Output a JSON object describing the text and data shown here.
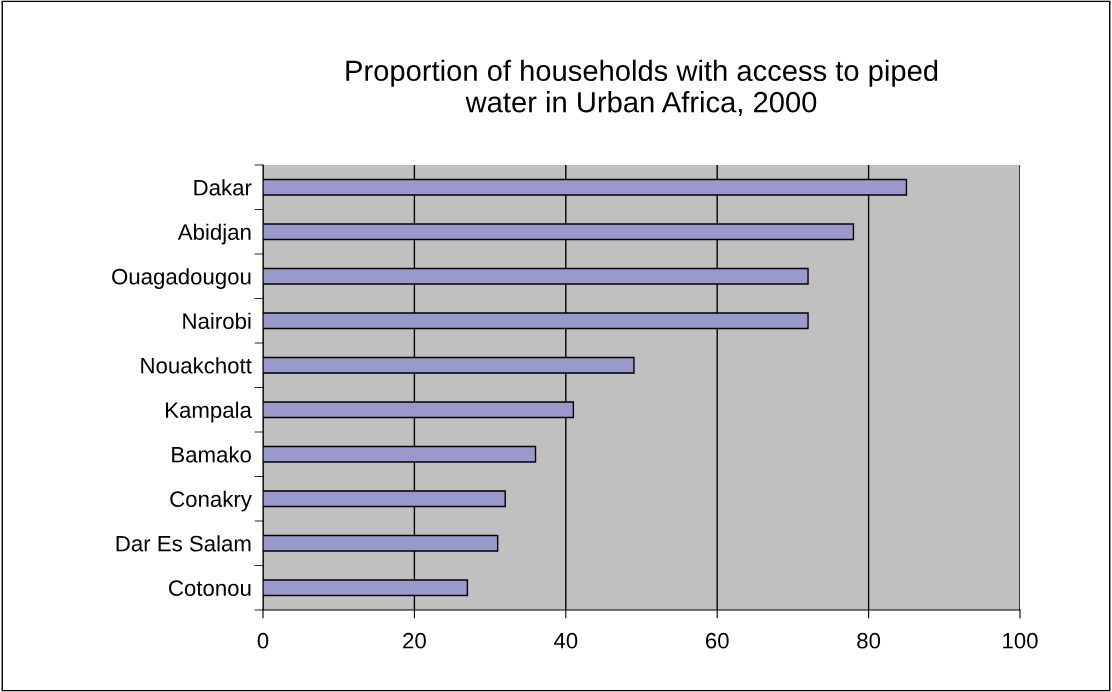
{
  "chart_data": {
    "type": "bar",
    "orientation": "horizontal",
    "title": "Proportion of households with access to piped\nwater in Urban Africa, 2000",
    "categories": [
      "Dakar",
      "Abidjan",
      "Ouagadougou",
      "Nairobi",
      "Nouakchott",
      "Kampala",
      "Bamako",
      "Conakry",
      "Dar Es Salam",
      "Cotonou"
    ],
    "values": [
      85,
      78,
      72,
      72,
      49,
      41,
      36,
      32,
      31,
      27
    ],
    "color": "#9999cc",
    "xlim": [
      0,
      100
    ],
    "xticks": [
      0,
      20,
      40,
      60,
      80,
      100
    ],
    "grid": "x"
  }
}
